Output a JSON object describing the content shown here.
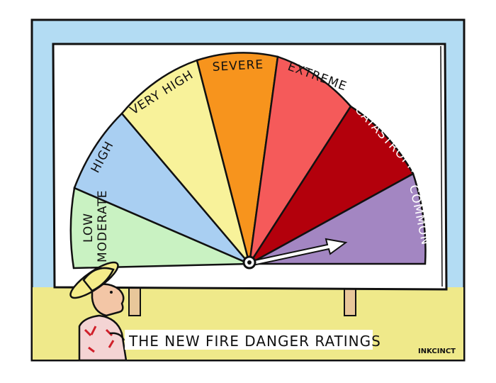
{
  "cartoon": {
    "caption": "THE NEW FIRE DANGER RATINGS",
    "signature": "INKCINCT",
    "dial": {
      "segments": [
        {
          "label": "LOW",
          "label2": "MODERATE",
          "color": "#c9f2c2"
        },
        {
          "label": "HIGH",
          "color": "#a9cff2"
        },
        {
          "label": "VERY HIGH",
          "color": "#f8f29a"
        },
        {
          "label": "SEVERE",
          "color": "#f7941d"
        },
        {
          "label": "EXTREME",
          "color": "#f55a5a"
        },
        {
          "label": "CATASTROPHIC",
          "color": "#b3000c"
        },
        {
          "label": "COMMON",
          "color": "#a386c2"
        }
      ],
      "pointer_at": "COMMON"
    },
    "colors": {
      "sky": "#b3dcf3",
      "grass": "#efe98a",
      "board": "#ffffff"
    }
  }
}
